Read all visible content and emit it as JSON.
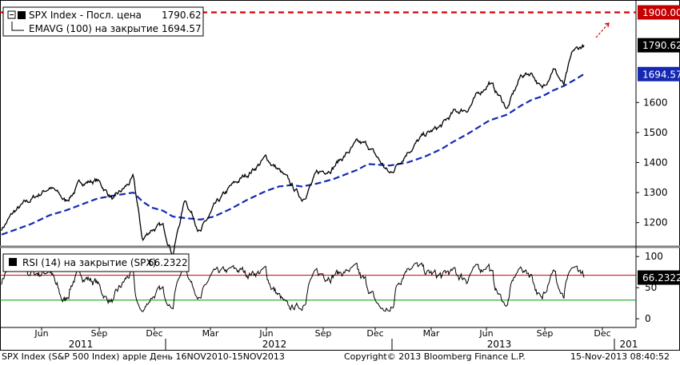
{
  "chart_data": [
    {
      "type": "line",
      "series": [
        {
          "name": "SPX Index - Посл. цена",
          "last_value": 1790.62,
          "color": "#000000"
        },
        {
          "name": "EMAVG (100) на закрытие",
          "last_value": 1694.57,
          "color": "#1428b4"
        }
      ],
      "x": [
        "2010-11-16",
        "2010-12-10",
        "2011-01-10",
        "2011-02-15",
        "2011-03-16",
        "2011-04-15",
        "2011-05-15",
        "2011-06-15",
        "2011-07-22",
        "2011-08-08",
        "2011-08-25",
        "2011-09-15",
        "2011-10-04",
        "2011-10-27",
        "2011-11-25",
        "2011-12-20",
        "2012-01-20",
        "2012-02-20",
        "2012-03-27",
        "2012-04-20",
        "2012-05-15",
        "2012-06-03",
        "2012-07-01",
        "2012-08-01",
        "2012-09-14",
        "2012-10-05",
        "2012-11-15",
        "2012-12-18",
        "2013-01-20",
        "2013-02-20",
        "2013-03-15",
        "2013-04-10",
        "2013-05-21",
        "2013-06-24",
        "2013-07-20",
        "2013-08-10",
        "2013-08-28",
        "2013-09-18",
        "2013-10-08",
        "2013-10-25",
        "2013-11-15"
      ],
      "price": [
        1180,
        1235,
        1275,
        1320,
        1270,
        1335,
        1340,
        1275,
        1345,
        1140,
        1180,
        1185,
        1100,
        1280,
        1170,
        1245,
        1315,
        1360,
        1415,
        1375,
        1320,
        1280,
        1360,
        1390,
        1460,
        1455,
        1360,
        1440,
        1490,
        1520,
        1565,
        1580,
        1670,
        1580,
        1690,
        1700,
        1640,
        1720,
        1655,
        1765,
        1790.62
      ],
      "ema": [
        1160,
        1175,
        1195,
        1225,
        1240,
        1260,
        1280,
        1290,
        1300,
        1270,
        1250,
        1240,
        1220,
        1215,
        1210,
        1220,
        1245,
        1275,
        1305,
        1320,
        1325,
        1320,
        1330,
        1345,
        1375,
        1395,
        1390,
        1400,
        1420,
        1445,
        1470,
        1495,
        1540,
        1560,
        1590,
        1610,
        1620,
        1640,
        1655,
        1672,
        1694.57
      ],
      "ylim": [
        1130,
        1920
      ],
      "yticks": [
        1200,
        1300,
        1400,
        1500,
        1600
      ],
      "reference_line": {
        "value": 1900.0,
        "label": "1900.00",
        "color": "#d40000"
      },
      "last_labels": [
        {
          "value": 1790.62,
          "text": "1790.62"
        },
        {
          "value": 1694.57,
          "text": "1694.57"
        }
      ]
    },
    {
      "type": "line",
      "series": [
        {
          "name": "RSI (14) на закрытие (SPX)",
          "last_value": 66.2322,
          "color": "#000000"
        }
      ],
      "ylim": [
        -5,
        108
      ],
      "yticks": [
        0,
        50,
        100
      ],
      "upper_band": 70,
      "lower_band": 30,
      "last_label": "66.2322"
    }
  ],
  "legend": {
    "price_label": "SPX Index - Посл. цена",
    "price_value": "1790.62",
    "ema_label": "EMAVG (100) на закрытие",
    "ema_value": "1694.57",
    "rsi_label": "RSI (14) на закрытие (SPX)",
    "rsi_value": "66.2322"
  },
  "x_axis": {
    "months": [
      "Jun",
      "Sep",
      "Dec",
      "Mar",
      "Jun",
      "Sep",
      "Dec",
      "Mar",
      "Jun",
      "Sep",
      "Dec"
    ],
    "years": [
      "2011",
      "2012",
      "2013",
      "201"
    ]
  },
  "footer": {
    "left": "SPX Index (S&P 500 Index) apple  День 16NOV2010-15NOV2013",
    "center": "Copyright© 2013 Bloomberg Finance L.P.",
    "right": "15-Nov-2013 08:40:52"
  },
  "colors": {
    "price": "#000000",
    "ema": "#1428b4",
    "reference": "#d40000",
    "rsi_upper": "#c80000",
    "rsi_lower": "#00a000",
    "label_box_dark": "#000000",
    "label_box_blue": "#1428b4",
    "label_box_red": "#c40000",
    "panel_separator": "#808080"
  }
}
